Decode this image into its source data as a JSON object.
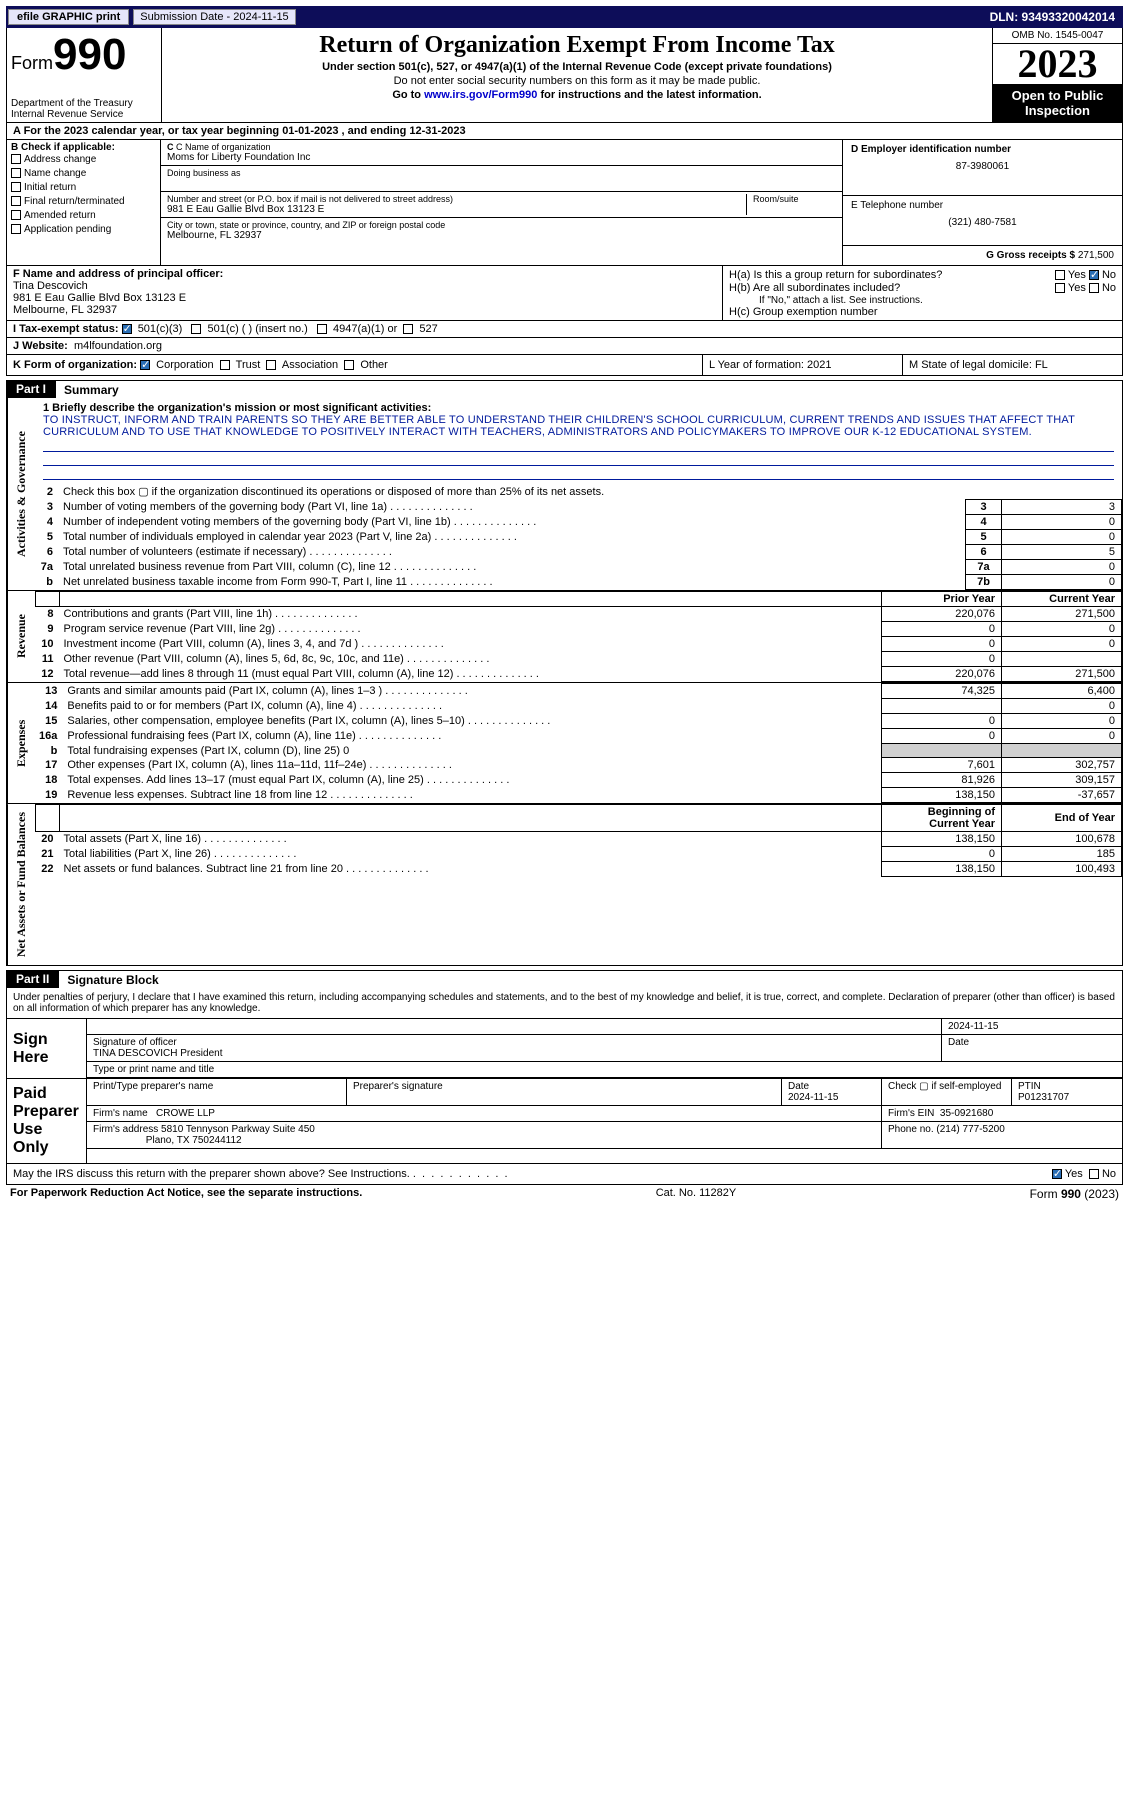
{
  "topbar": {
    "efile": "efile GRAPHIC print",
    "sub_label": "Submission Date - 2024-11-15",
    "dln": "DLN: 93493320042014"
  },
  "header": {
    "form_prefix": "Form",
    "form_number": "990",
    "dept": "Department of the Treasury",
    "irs": "Internal Revenue Service",
    "title": "Return of Organization Exempt From Income Tax",
    "sub1": "Under section 501(c), 527, or 4947(a)(1) of the Internal Revenue Code (except private foundations)",
    "sub2": "Do not enter social security numbers on this form as it may be made public.",
    "sub3_pre": "Go to ",
    "sub3_link": "www.irs.gov/Form990",
    "sub3_post": " for instructions and the latest information.",
    "omb": "OMB No. 1545-0047",
    "year": "2023",
    "open": "Open to Public Inspection"
  },
  "rowA": {
    "text": "A For the 2023 calendar year, or tax year beginning 01-01-2023   , and ending 12-31-2023"
  },
  "colB": {
    "label": "B Check if applicable:",
    "opts": [
      "Address change",
      "Name change",
      "Initial return",
      "Final return/terminated",
      "Amended return",
      "Application pending"
    ]
  },
  "colC": {
    "name_label": "C Name of organization",
    "name": "Moms for Liberty Foundation Inc",
    "dba_label": "Doing business as",
    "addr_label": "Number and street (or P.O. box if mail is not delivered to street address)",
    "room_label": "Room/suite",
    "addr": "981 E Eau Gallie Blvd Box 13123 E",
    "city_label": "City or town, state or province, country, and ZIP or foreign postal code",
    "city": "Melbourne, FL  32937"
  },
  "colDE": {
    "d_label": "D Employer identification number",
    "ein": "87-3980061",
    "e_label": "E Telephone number",
    "phone": "(321) 480-7581",
    "g_label": "G Gross receipts $",
    "g_val": "271,500"
  },
  "rowF": {
    "label": "F Name and address of principal officer:",
    "name": "Tina Descovich",
    "addr": "981 E Eau Gallie Blvd Box 13123 E",
    "city": "Melbourne, FL  32937"
  },
  "rowH": {
    "ha": "H(a)  Is this a group return for subordinates?",
    "hb": "H(b)  Are all subordinates included?",
    "hb_note": "If \"No,\" attach a list. See instructions.",
    "hc": "H(c)  Group exemption number ",
    "yes": "Yes",
    "no": "No"
  },
  "rowI": {
    "label": "I  Tax-exempt status:",
    "c3": "501(c)(3)",
    "c": "501(c) (  ) (insert no.)",
    "a1": "4947(a)(1) or",
    "s527": "527"
  },
  "rowJ": {
    "label": "J  Website:",
    "val": "m4lfoundation.org"
  },
  "rowK": {
    "label": "K Form of organization:",
    "corp": "Corporation",
    "trust": "Trust",
    "assoc": "Association",
    "other": "Other"
  },
  "rowL": {
    "label": "L Year of formation: 2021"
  },
  "rowM": {
    "label": "M State of legal domicile: FL"
  },
  "part1": {
    "num": "Part I",
    "title": "Summary"
  },
  "mission": {
    "q": "1  Briefly describe the organization's mission or most significant activities:",
    "text": "TO INSTRUCT, INFORM AND TRAIN PARENTS SO THEY ARE BETTER ABLE TO UNDERSTAND THEIR CHILDREN'S SCHOOL CURRICULUM, CURRENT TRENDS AND ISSUES THAT AFFECT THAT CURRICULUM AND TO USE THAT KNOWLEDGE TO POSITIVELY INTERACT WITH TEACHERS, ADMINISTRATORS AND POLICYMAKERS TO IMPROVE OUR K-12 EDUCATIONAL SYSTEM."
  },
  "sides": {
    "gov": "Activities & Governance",
    "rev": "Revenue",
    "exp": "Expenses",
    "net": "Net Assets or Fund Balances"
  },
  "gov_rows": [
    {
      "n": "2",
      "t": "Check this box ▢ if the organization discontinued its operations or disposed of more than 25% of its net assets."
    },
    {
      "n": "3",
      "t": "Number of voting members of the governing body (Part VI, line 1a)",
      "box": "3",
      "val": "3"
    },
    {
      "n": "4",
      "t": "Number of independent voting members of the governing body (Part VI, line 1b)",
      "box": "4",
      "val": "0"
    },
    {
      "n": "5",
      "t": "Total number of individuals employed in calendar year 2023 (Part V, line 2a)",
      "box": "5",
      "val": "0"
    },
    {
      "n": "6",
      "t": "Total number of volunteers (estimate if necessary)",
      "box": "6",
      "val": "5"
    },
    {
      "n": "7a",
      "t": "Total unrelated business revenue from Part VIII, column (C), line 12",
      "box": "7a",
      "val": "0"
    },
    {
      "n": "b",
      "t": "Net unrelated business taxable income from Form 990-T, Part I, line 11",
      "box": "7b",
      "val": "0"
    }
  ],
  "yr_hdr": {
    "prior": "Prior Year",
    "cur": "Current Year"
  },
  "rev_rows": [
    {
      "n": "8",
      "t": "Contributions and grants (Part VIII, line 1h)",
      "p": "220,076",
      "c": "271,500"
    },
    {
      "n": "9",
      "t": "Program service revenue (Part VIII, line 2g)",
      "p": "0",
      "c": "0"
    },
    {
      "n": "10",
      "t": "Investment income (Part VIII, column (A), lines 3, 4, and 7d )",
      "p": "0",
      "c": "0"
    },
    {
      "n": "11",
      "t": "Other revenue (Part VIII, column (A), lines 5, 6d, 8c, 9c, 10c, and 11e)",
      "p": "0",
      "c": ""
    },
    {
      "n": "12",
      "t": "Total revenue—add lines 8 through 11 (must equal Part VIII, column (A), line 12)",
      "p": "220,076",
      "c": "271,500"
    }
  ],
  "exp_rows": [
    {
      "n": "13",
      "t": "Grants and similar amounts paid (Part IX, column (A), lines 1–3 )",
      "p": "74,325",
      "c": "6,400"
    },
    {
      "n": "14",
      "t": "Benefits paid to or for members (Part IX, column (A), line 4)",
      "p": "",
      "c": "0"
    },
    {
      "n": "15",
      "t": "Salaries, other compensation, employee benefits (Part IX, column (A), lines 5–10)",
      "p": "0",
      "c": "0"
    },
    {
      "n": "16a",
      "t": "Professional fundraising fees (Part IX, column (A), line 11e)",
      "p": "0",
      "c": "0"
    },
    {
      "n": "b",
      "t": "Total fundraising expenses (Part IX, column (D), line 25) 0",
      "gray": true
    },
    {
      "n": "17",
      "t": "Other expenses (Part IX, column (A), lines 11a–11d, 11f–24e)",
      "p": "7,601",
      "c": "302,757"
    },
    {
      "n": "18",
      "t": "Total expenses. Add lines 13–17 (must equal Part IX, column (A), line 25)",
      "p": "81,926",
      "c": "309,157"
    },
    {
      "n": "19",
      "t": "Revenue less expenses. Subtract line 18 from line 12",
      "p": "138,150",
      "c": "-37,657"
    }
  ],
  "net_hdr": {
    "beg": "Beginning of Current Year",
    "end": "End of Year"
  },
  "net_rows": [
    {
      "n": "20",
      "t": "Total assets (Part X, line 16)",
      "p": "138,150",
      "c": "100,678"
    },
    {
      "n": "21",
      "t": "Total liabilities (Part X, line 26)",
      "p": "0",
      "c": "185"
    },
    {
      "n": "22",
      "t": "Net assets or fund balances. Subtract line 21 from line 20",
      "p": "138,150",
      "c": "100,493"
    }
  ],
  "part2": {
    "num": "Part II",
    "title": "Signature Block"
  },
  "sig": {
    "decl": "Under penalties of perjury, I declare that I have examined this return, including accompanying schedules and statements, and to the best of my knowledge and belief, it is true, correct, and complete. Declaration of preparer (other than officer) is based on all information of which preparer has any knowledge.",
    "sign_here": "Sign Here",
    "sig_officer": "Signature of officer",
    "officer": "TINA DESCOVICH  President",
    "type_name": "Type or print name and title",
    "date": "Date",
    "date_val": "2024-11-15",
    "paid": "Paid Preparer Use Only",
    "prep_name_label": "Print/Type preparer's name",
    "prep_sig_label": "Preparer's signature",
    "prep_date": "2024-11-15",
    "check_self": "Check ▢ if self-employed",
    "ptin_label": "PTIN",
    "ptin": "P01231707",
    "firm_name_label": "Firm's name",
    "firm_name": "CROWE LLP",
    "firm_ein_label": "Firm's EIN",
    "firm_ein": "35-0921680",
    "firm_addr_label": "Firm's address",
    "firm_addr1": "5810 Tennyson Parkway Suite 450",
    "firm_addr2": "Plano, TX  750244112",
    "phone_label": "Phone no.",
    "phone": "(214) 777-5200",
    "discuss": "May the IRS discuss this return with the preparer shown above? See Instructions.",
    "yes": "Yes",
    "no": "No"
  },
  "footer": {
    "left": "For Paperwork Reduction Act Notice, see the separate instructions.",
    "mid": "Cat. No. 11282Y",
    "right": "Form 990 (2023)"
  }
}
